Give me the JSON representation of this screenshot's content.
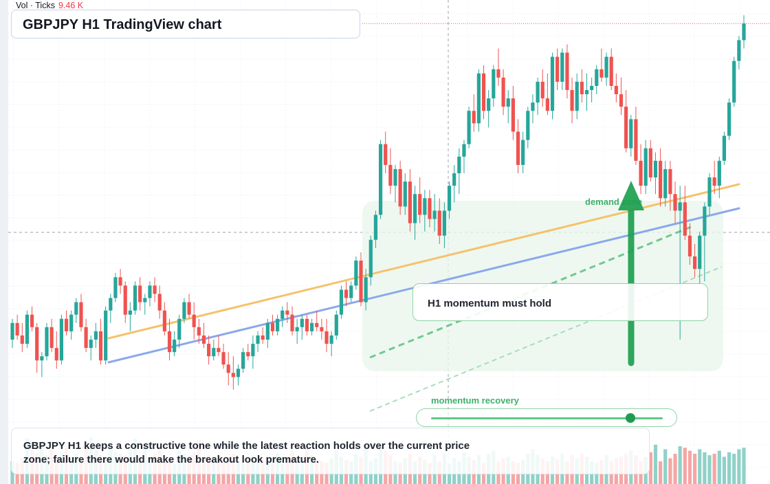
{
  "header": {
    "title": "GBPJPY H1 TradingView chart",
    "volume_label": "Vol · Ticks",
    "volume_value": "9.46 K"
  },
  "annotations": {
    "zone_label": "demand zone",
    "note": "H1 momentum must hold",
    "slider_label": "momentum recovery",
    "slider_level": 0.86,
    "caption": "GBPJPY H1 keeps a constructive tone while the latest reaction holds over the current price zone; failure there would make the breakout look premature."
  },
  "colors": {
    "up": "#26a69a",
    "down": "#ef5350",
    "up_volume": "#8fd1c8",
    "down_volume": "#f5a6a4",
    "resistance_line": "#f5c26b",
    "trend_line": "#8aa8ec",
    "channel_line": "#5cc080",
    "arrow": "#1ea050",
    "zone": "#e8f6ec"
  },
  "chart_data": {
    "type": "candlestick",
    "symbol": "GBPJPY",
    "timeframe": "H1",
    "y_range": [
      0,
      100
    ],
    "price_scale_labels": "none",
    "grid": true,
    "series": [
      {
        "name": "price",
        "ohlc": [
          [
            20,
            25,
            18,
            24
          ],
          [
            24,
            26,
            20,
            21
          ],
          [
            21,
            24,
            17,
            19
          ],
          [
            19,
            27,
            18,
            26
          ],
          [
            26,
            28,
            22,
            23
          ],
          [
            23,
            24,
            12,
            15
          ],
          [
            15,
            17,
            11,
            16
          ],
          [
            16,
            24,
            15,
            23
          ],
          [
            23,
            25,
            17,
            18
          ],
          [
            18,
            22,
            13,
            15
          ],
          [
            15,
            26,
            14,
            25
          ],
          [
            25,
            27,
            21,
            22
          ],
          [
            22,
            27,
            20,
            26
          ],
          [
            26,
            30,
            24,
            29
          ],
          [
            29,
            31,
            22,
            23
          ],
          [
            23,
            25,
            17,
            18
          ],
          [
            18,
            21,
            15,
            20
          ],
          [
            20,
            24,
            18,
            22
          ],
          [
            22,
            25,
            14,
            15
          ],
          [
            15,
            28,
            14,
            27
          ],
          [
            27,
            31,
            24,
            30
          ],
          [
            30,
            36,
            29,
            35
          ],
          [
            35,
            37,
            31,
            33
          ],
          [
            33,
            34,
            24,
            26
          ],
          [
            26,
            29,
            22,
            27
          ],
          [
            27,
            34,
            26,
            33
          ],
          [
            33,
            35,
            27,
            29
          ],
          [
            29,
            31,
            26,
            30
          ],
          [
            30,
            34,
            28,
            33
          ],
          [
            33,
            35,
            29,
            31
          ],
          [
            31,
            33,
            25,
            27
          ],
          [
            27,
            29,
            21,
            22
          ],
          [
            22,
            25,
            15,
            17
          ],
          [
            17,
            22,
            16,
            20
          ],
          [
            20,
            26,
            18,
            25
          ],
          [
            25,
            30,
            24,
            29
          ],
          [
            29,
            31,
            25,
            26
          ],
          [
            26,
            29,
            20,
            23
          ],
          [
            23,
            25,
            19,
            21
          ],
          [
            21,
            24,
            18,
            19
          ],
          [
            19,
            21,
            14,
            16
          ],
          [
            16,
            20,
            15,
            18
          ],
          [
            18,
            21,
            16,
            17
          ],
          [
            17,
            19,
            13,
            14
          ],
          [
            14,
            17,
            9,
            12
          ],
          [
            12,
            16,
            8,
            11
          ],
          [
            11,
            14,
            9,
            13
          ],
          [
            13,
            18,
            12,
            17
          ],
          [
            17,
            19,
            15,
            16
          ],
          [
            16,
            21,
            13,
            19
          ],
          [
            19,
            22,
            17,
            21
          ],
          [
            21,
            23,
            19,
            20
          ],
          [
            20,
            25,
            18,
            24
          ],
          [
            24,
            26,
            21,
            22
          ],
          [
            22,
            26,
            21,
            25
          ],
          [
            25,
            28,
            23,
            27
          ],
          [
            27,
            29,
            24,
            26
          ],
          [
            26,
            28,
            21,
            22
          ],
          [
            22,
            25,
            19,
            23
          ],
          [
            23,
            26,
            20,
            25
          ],
          [
            25,
            26,
            21,
            22
          ],
          [
            22,
            25,
            21,
            24
          ],
          [
            24,
            27,
            22,
            23
          ],
          [
            23,
            25,
            20,
            22
          ],
          [
            22,
            25,
            17,
            19
          ],
          [
            19,
            22,
            16,
            21
          ],
          [
            21,
            27,
            20,
            26
          ],
          [
            26,
            33,
            25,
            32
          ],
          [
            32,
            34,
            28,
            30
          ],
          [
            30,
            34,
            29,
            33
          ],
          [
            33,
            40,
            32,
            39
          ],
          [
            39,
            41,
            28,
            29
          ],
          [
            29,
            37,
            27,
            35
          ],
          [
            35,
            45,
            33,
            44
          ],
          [
            44,
            51,
            42,
            50
          ],
          [
            50,
            68,
            49,
            67
          ],
          [
            67,
            70,
            60,
            62
          ],
          [
            62,
            66,
            55,
            57
          ],
          [
            57,
            62,
            53,
            61
          ],
          [
            61,
            63,
            50,
            52
          ],
          [
            52,
            60,
            50,
            58
          ],
          [
            58,
            61,
            46,
            48
          ],
          [
            48,
            57,
            44,
            55
          ],
          [
            55,
            59,
            48,
            50
          ],
          [
            50,
            56,
            46,
            54
          ],
          [
            54,
            56,
            47,
            49
          ],
          [
            49,
            55,
            46,
            51
          ],
          [
            51,
            54,
            43,
            45
          ],
          [
            45,
            53,
            42,
            51
          ],
          [
            51,
            58,
            49,
            57
          ],
          [
            57,
            62,
            53,
            60
          ],
          [
            60,
            66,
            55,
            64
          ],
          [
            64,
            68,
            60,
            67
          ],
          [
            67,
            76,
            66,
            75
          ],
          [
            75,
            79,
            70,
            72
          ],
          [
            72,
            85,
            70,
            84
          ],
          [
            84,
            86,
            73,
            75
          ],
          [
            75,
            80,
            71,
            78
          ],
          [
            78,
            86,
            76,
            85
          ],
          [
            85,
            90,
            81,
            83
          ],
          [
            83,
            85,
            74,
            76
          ],
          [
            76,
            80,
            72,
            78
          ],
          [
            78,
            81,
            68,
            70
          ],
          [
            70,
            73,
            60,
            62
          ],
          [
            62,
            70,
            60,
            68
          ],
          [
            68,
            76,
            66,
            75
          ],
          [
            75,
            79,
            72,
            77
          ],
          [
            77,
            83,
            74,
            82
          ],
          [
            82,
            85,
            76,
            78
          ],
          [
            78,
            84,
            74,
            75
          ],
          [
            75,
            89,
            73,
            88
          ],
          [
            88,
            90,
            80,
            82
          ],
          [
            82,
            90,
            80,
            89
          ],
          [
            89,
            91,
            78,
            80
          ],
          [
            80,
            83,
            72,
            75
          ],
          [
            75,
            84,
            73,
            82
          ],
          [
            82,
            85,
            77,
            79
          ],
          [
            79,
            84,
            75,
            80
          ],
          [
            80,
            83,
            77,
            81
          ],
          [
            81,
            86,
            79,
            85
          ],
          [
            85,
            90,
            82,
            83
          ],
          [
            83,
            89,
            81,
            88
          ],
          [
            88,
            90,
            80,
            81
          ],
          [
            81,
            84,
            77,
            79
          ],
          [
            79,
            83,
            74,
            76
          ],
          [
            76,
            80,
            65,
            66
          ],
          [
            66,
            74,
            64,
            73
          ],
          [
            73,
            76,
            62,
            63
          ],
          [
            63,
            67,
            55,
            57
          ],
          [
            57,
            68,
            55,
            66
          ],
          [
            66,
            68,
            58,
            59
          ],
          [
            59,
            65,
            55,
            63
          ],
          [
            63,
            66,
            52,
            54
          ],
          [
            54,
            63,
            52,
            61
          ],
          [
            61,
            63,
            51,
            55
          ],
          [
            55,
            58,
            48,
            51
          ],
          [
            51,
            57,
            20,
            53
          ],
          [
            53,
            57,
            44,
            45
          ],
          [
            45,
            48,
            38,
            40
          ],
          [
            40,
            43,
            35,
            37
          ],
          [
            37,
            46,
            33,
            45
          ],
          [
            45,
            53,
            34,
            52
          ],
          [
            52,
            60,
            50,
            59
          ],
          [
            59,
            63,
            55,
            57
          ],
          [
            57,
            64,
            54,
            63
          ],
          [
            63,
            70,
            62,
            69
          ],
          [
            69,
            78,
            68,
            77
          ],
          [
            77,
            88,
            76,
            87
          ],
          [
            87,
            93,
            85,
            92
          ],
          [
            92,
            98,
            90,
            96
          ]
        ]
      },
      {
        "name": "volume",
        "values": [
          30,
          28,
          35,
          60,
          45,
          40,
          52,
          38,
          46,
          33,
          42,
          48,
          36,
          40,
          30,
          55,
          62,
          44,
          38,
          35,
          50,
          42,
          40,
          38,
          46,
          60,
          35,
          52,
          33,
          40,
          48,
          30,
          36,
          26,
          44,
          40,
          38,
          42,
          58,
          35,
          38,
          30,
          28,
          32,
          36,
          40,
          30,
          26,
          34,
          38,
          30,
          34,
          32,
          28,
          40,
          36,
          32,
          44,
          36,
          30,
          46,
          38,
          32,
          30,
          28,
          34,
          44,
          36,
          32,
          30,
          40,
          36,
          48,
          30,
          34,
          52,
          44,
          38,
          30,
          28,
          34,
          40,
          30,
          36,
          32,
          28,
          38,
          30,
          40,
          26,
          34,
          30,
          42,
          36,
          32,
          38,
          28,
          40,
          44,
          30,
          34,
          36,
          30,
          28,
          32,
          40,
          46,
          38,
          34,
          30,
          36,
          32,
          40,
          30,
          38,
          34,
          40,
          36,
          30,
          28,
          32,
          38,
          30,
          34,
          36,
          40,
          44,
          38,
          30,
          36,
          42,
          52,
          30,
          46,
          34,
          40,
          50,
          48,
          44,
          40,
          46,
          42,
          38,
          40,
          44,
          36,
          42,
          40,
          46,
          48
        ]
      }
    ]
  }
}
